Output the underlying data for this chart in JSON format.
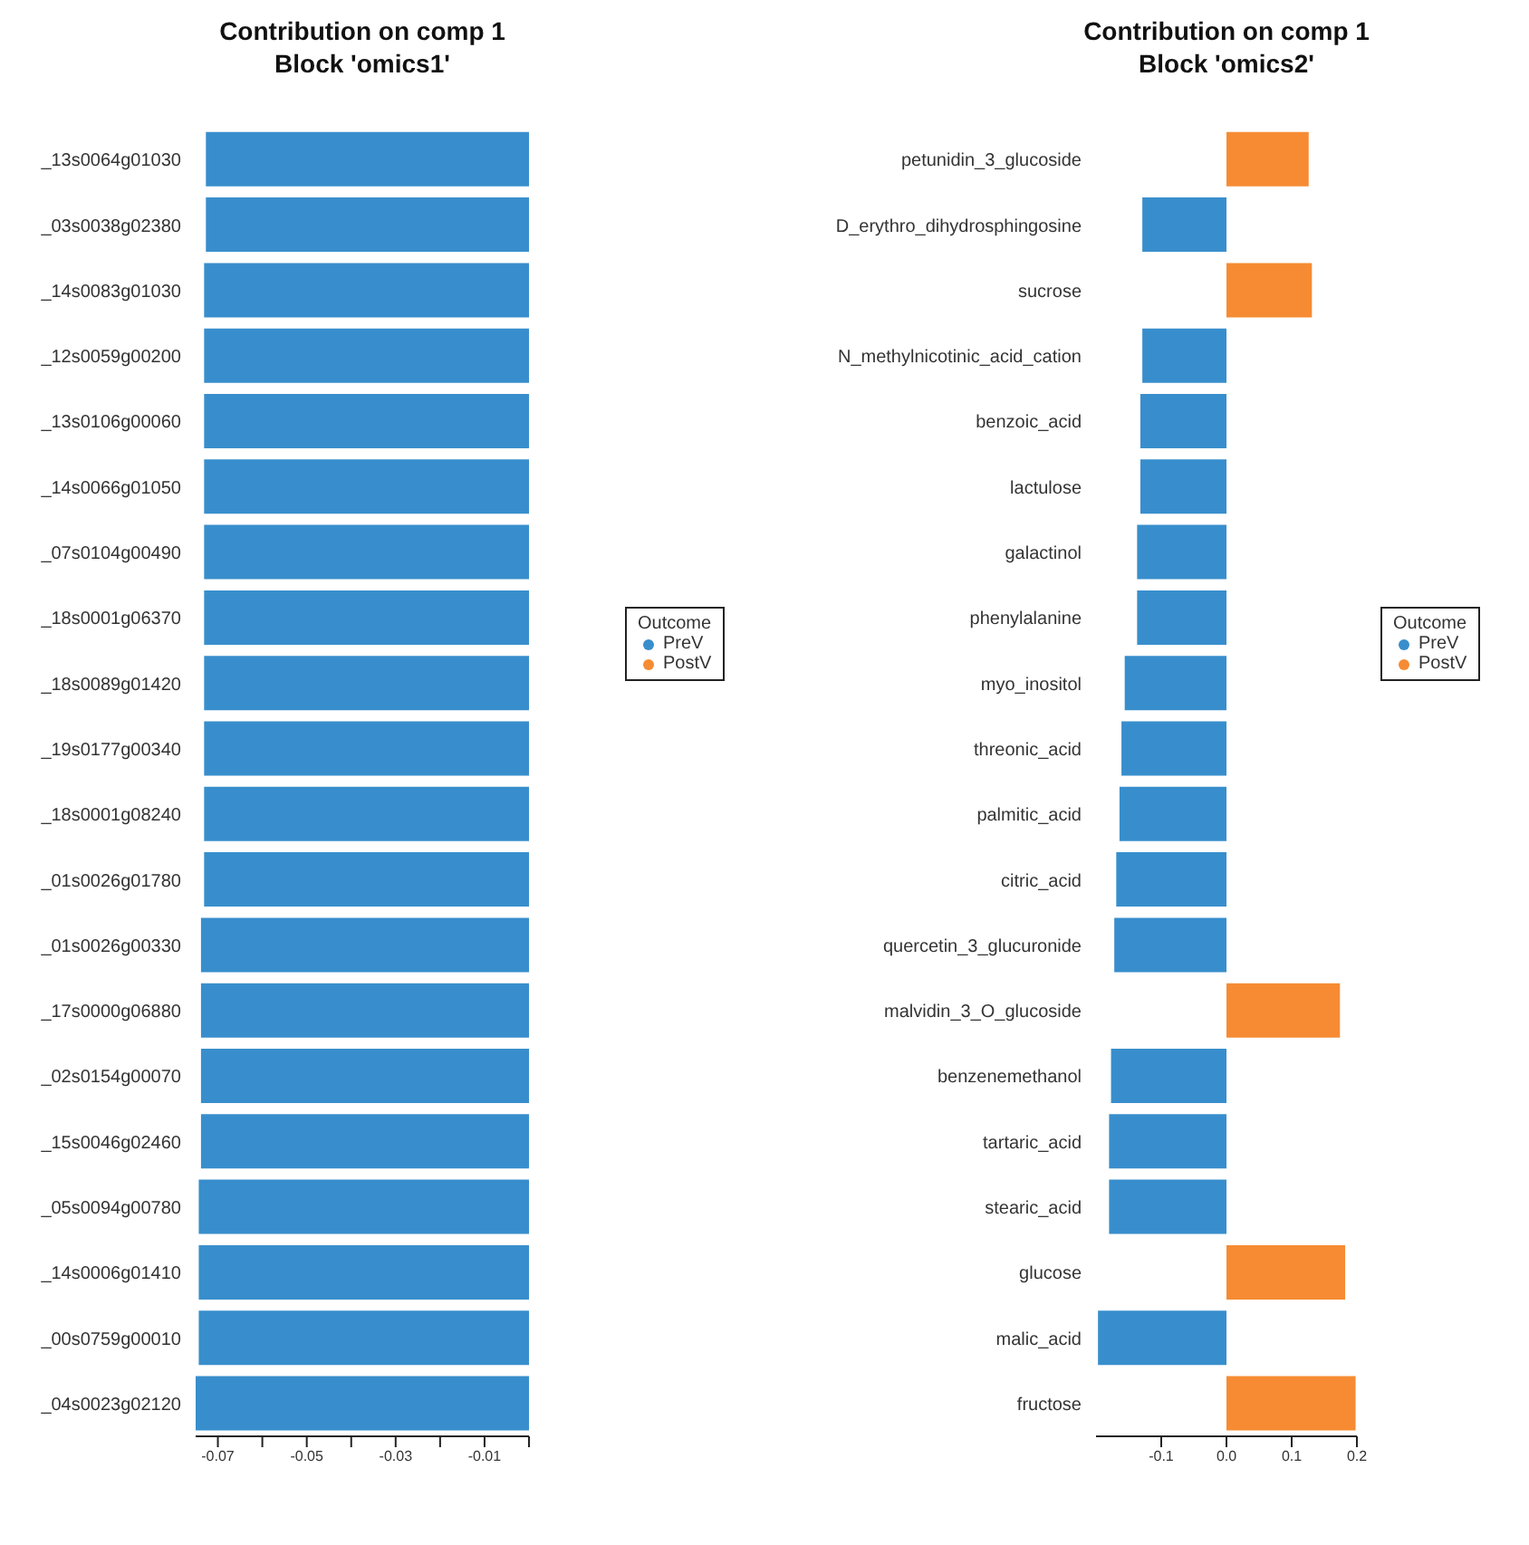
{
  "chart_data": [
    {
      "type": "bar",
      "orientation": "horizontal",
      "title": "Contribution on comp 1",
      "subtitle": "Block 'omics1'",
      "legend_title": "Outcome",
      "legend": "right",
      "categories": [
        "_13s0064g01030",
        "_03s0038g02380",
        "_14s0083g01030",
        "_12s0059g00200",
        "_13s0106g00060",
        "_14s0066g01050",
        "_07s0104g00490",
        "_18s0001g06370",
        "_18s0089g01420",
        "_19s0177g00340",
        "_18s0001g08240",
        "_01s0026g01780",
        "_01s0026g00330",
        "_17s0000g06880",
        "_02s0154g00070",
        "_15s0046g02460",
        "_05s0094g00780",
        "_14s0006g01410",
        "_00s0759g00010",
        "_04s0023g02120"
      ],
      "series": [
        {
          "name": "PreV",
          "color": "#388ecc",
          "values": [
            -0.0727,
            -0.0727,
            -0.0731,
            -0.0731,
            -0.0731,
            -0.0731,
            -0.0731,
            -0.0731,
            -0.0731,
            -0.0731,
            -0.0731,
            -0.0731,
            -0.0738,
            -0.0738,
            -0.0738,
            -0.0738,
            -0.0743,
            -0.0743,
            -0.0743,
            -0.075
          ]
        },
        {
          "name": "PostV",
          "color": "#f68b33",
          "values": [
            null,
            null,
            null,
            null,
            null,
            null,
            null,
            null,
            null,
            null,
            null,
            null,
            null,
            null,
            null,
            null,
            null,
            null,
            null,
            null
          ]
        }
      ],
      "xlim": [
        -0.075,
        0
      ],
      "xticks": [
        -0.07,
        {
          "value": -0.06,
          "label": null
        },
        -0.05,
        {
          "value": -0.04,
          "label": null
        },
        -0.03,
        {
          "value": -0.02,
          "label": null
        },
        -0.01,
        {
          "value": 0,
          "label": null
        }
      ]
    },
    {
      "type": "bar",
      "orientation": "horizontal",
      "title": "Contribution on comp 1",
      "subtitle": "Block 'omics2'",
      "legend_title": "Outcome",
      "legend": "right",
      "categories": [
        "petunidin_3_glucoside",
        "D_erythro_dihydrosphingosine",
        "sucrose",
        "N_methylnicotinic_acid_cation",
        "benzoic_acid",
        "lactulose",
        "galactinol",
        "phenylalanine",
        "myo_inositol",
        "threonic_acid",
        "palmitic_acid",
        "citric_acid",
        "quercetin_3_glucuronide",
        "malvidin_3_O_glucoside",
        "benzenemethanol",
        "tartaric_acid",
        "stearic_acid",
        "glucose",
        "malic_acid",
        "fructose"
      ],
      "series": [
        {
          "name": "PreV",
          "color": "#388ecc",
          "values": [
            null,
            -0.129,
            null,
            -0.129,
            -0.132,
            -0.132,
            -0.137,
            -0.137,
            -0.156,
            -0.161,
            -0.164,
            -0.169,
            -0.172,
            null,
            -0.177,
            -0.18,
            -0.18,
            null,
            -0.197,
            null
          ]
        },
        {
          "name": "PostV",
          "color": "#f68b33",
          "values": [
            0.126,
            null,
            0.131,
            null,
            null,
            null,
            null,
            null,
            null,
            null,
            null,
            null,
            null,
            0.174,
            null,
            null,
            null,
            0.182,
            null,
            0.198
          ]
        }
      ],
      "xlim": [
        -0.2,
        0.2
      ],
      "xticks": [
        -0.1,
        {
          "value": 0,
          "label": "0.0"
        },
        0.1,
        0.2
      ]
    }
  ]
}
